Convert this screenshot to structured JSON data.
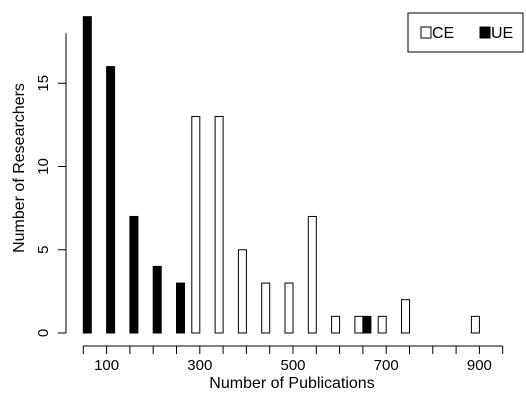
{
  "chart_data": {
    "type": "bar",
    "title": "",
    "xlabel": "Number of Publications",
    "ylabel": "Number of Researchers",
    "x_tick_labels": [
      "100",
      "300",
      "500",
      "700",
      "900"
    ],
    "y_tick_labels": [
      "0",
      "5",
      "10",
      "15"
    ],
    "ylim": [
      0,
      20
    ],
    "legend_position": "top-right",
    "bin_centers": [
      50,
      100,
      150,
      200,
      250,
      300,
      350,
      400,
      450,
      500,
      550,
      600,
      650,
      700,
      750,
      800,
      850,
      900,
      950
    ],
    "series": [
      {
        "name": "CE",
        "fill": "#ffffff",
        "values": [
          0,
          0,
          0,
          0,
          0,
          13,
          13,
          5,
          3,
          3,
          7,
          1,
          1,
          1,
          2,
          0,
          0,
          1,
          0
        ]
      },
      {
        "name": "UE",
        "fill": "#000000",
        "values": [
          19,
          16,
          7,
          4,
          3,
          0,
          0,
          0,
          0,
          0,
          0,
          0,
          1,
          0,
          0,
          0,
          0,
          0,
          0
        ]
      }
    ]
  }
}
